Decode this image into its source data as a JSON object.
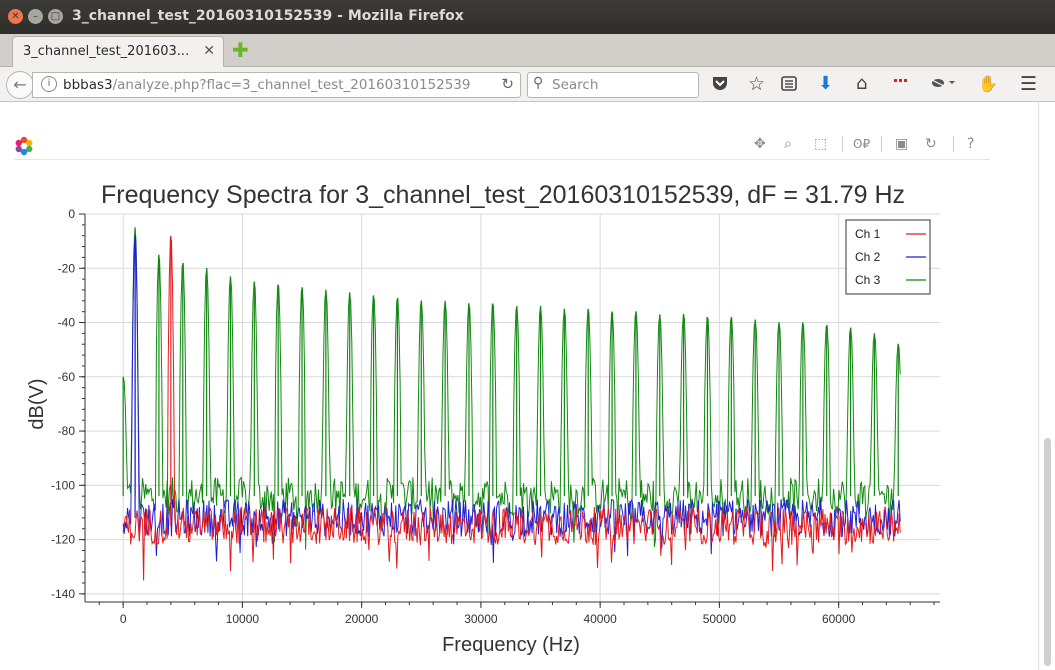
{
  "window": {
    "title": "3_channel_test_20160310152539 - Mozilla Firefox"
  },
  "tabs": [
    {
      "label": "3_channel_test_201603..."
    }
  ],
  "navbar": {
    "url_host": "bbbas3",
    "url_path": "/analyze.php?flac=3_channel_test_20160310152539",
    "search_placeholder": "Search"
  },
  "icons": {
    "back": "arrow-left-icon",
    "info": "info-icon",
    "reload": "reload-icon",
    "search": "search-icon",
    "pocket": "pocket-icon",
    "bookmark": "star-icon",
    "reading_list": "reading-list-icon",
    "downloads": "download-icon",
    "home": "home-icon",
    "menu": "hamburger-menu-icon"
  },
  "colors": {
    "ch1": "#e41a1c",
    "ch2": "#1f1fd6",
    "ch3": "#118811",
    "download": "#1e7ad6"
  },
  "chart_data": {
    "type": "line",
    "title": "Frequency Spectra for 3_channel_test_20160310152539, dF = 31.79 Hz",
    "xlabel": "Frequency (Hz)",
    "ylabel": "dB(V)",
    "xlim": [
      -3200,
      68500
    ],
    "ylim": [
      -143,
      0
    ],
    "x_ticks": [
      0,
      10000,
      20000,
      30000,
      40000,
      50000,
      60000
    ],
    "y_ticks": [
      0,
      -20,
      -40,
      -60,
      -80,
      -100,
      -120,
      -140
    ],
    "grid": true,
    "legend_position": "top-right",
    "series": [
      {
        "name": "Ch 1",
        "noise_floor": -115,
        "peaks": [
          {
            "x": 4000,
            "y": -8
          }
        ]
      },
      {
        "name": "Ch 2",
        "noise_floor": -112,
        "peaks": [
          {
            "x": 1000,
            "y": -8
          }
        ]
      },
      {
        "name": "Ch 3",
        "noise_floor": -104,
        "peaks": [
          {
            "x": 0,
            "y": -60
          },
          {
            "x": 1000,
            "y": -5
          },
          {
            "x": 3000,
            "y": -15
          },
          {
            "x": 5000,
            "y": -18
          },
          {
            "x": 7000,
            "y": -20
          },
          {
            "x": 9000,
            "y": -23
          },
          {
            "x": 11000,
            "y": -25
          },
          {
            "x": 13000,
            "y": -26
          },
          {
            "x": 15000,
            "y": -27
          },
          {
            "x": 17000,
            "y": -28
          },
          {
            "x": 19000,
            "y": -29
          },
          {
            "x": 21000,
            "y": -30
          },
          {
            "x": 23000,
            "y": -31
          },
          {
            "x": 25000,
            "y": -32
          },
          {
            "x": 27000,
            "y": -32
          },
          {
            "x": 29000,
            "y": -33
          },
          {
            "x": 31000,
            "y": -33
          },
          {
            "x": 33000,
            "y": -34
          },
          {
            "x": 35000,
            "y": -34
          },
          {
            "x": 37000,
            "y": -35
          },
          {
            "x": 39000,
            "y": -35
          },
          {
            "x": 41000,
            "y": -36
          },
          {
            "x": 43000,
            "y": -36
          },
          {
            "x": 45000,
            "y": -37
          },
          {
            "x": 47000,
            "y": -37
          },
          {
            "x": 49000,
            "y": -38
          },
          {
            "x": 51000,
            "y": -38
          },
          {
            "x": 53000,
            "y": -39
          },
          {
            "x": 55000,
            "y": -40
          },
          {
            "x": 57000,
            "y": -40
          },
          {
            "x": 59000,
            "y": -41
          },
          {
            "x": 61000,
            "y": -42
          },
          {
            "x": 63000,
            "y": -44
          },
          {
            "x": 65000,
            "y": -48
          }
        ]
      }
    ]
  }
}
